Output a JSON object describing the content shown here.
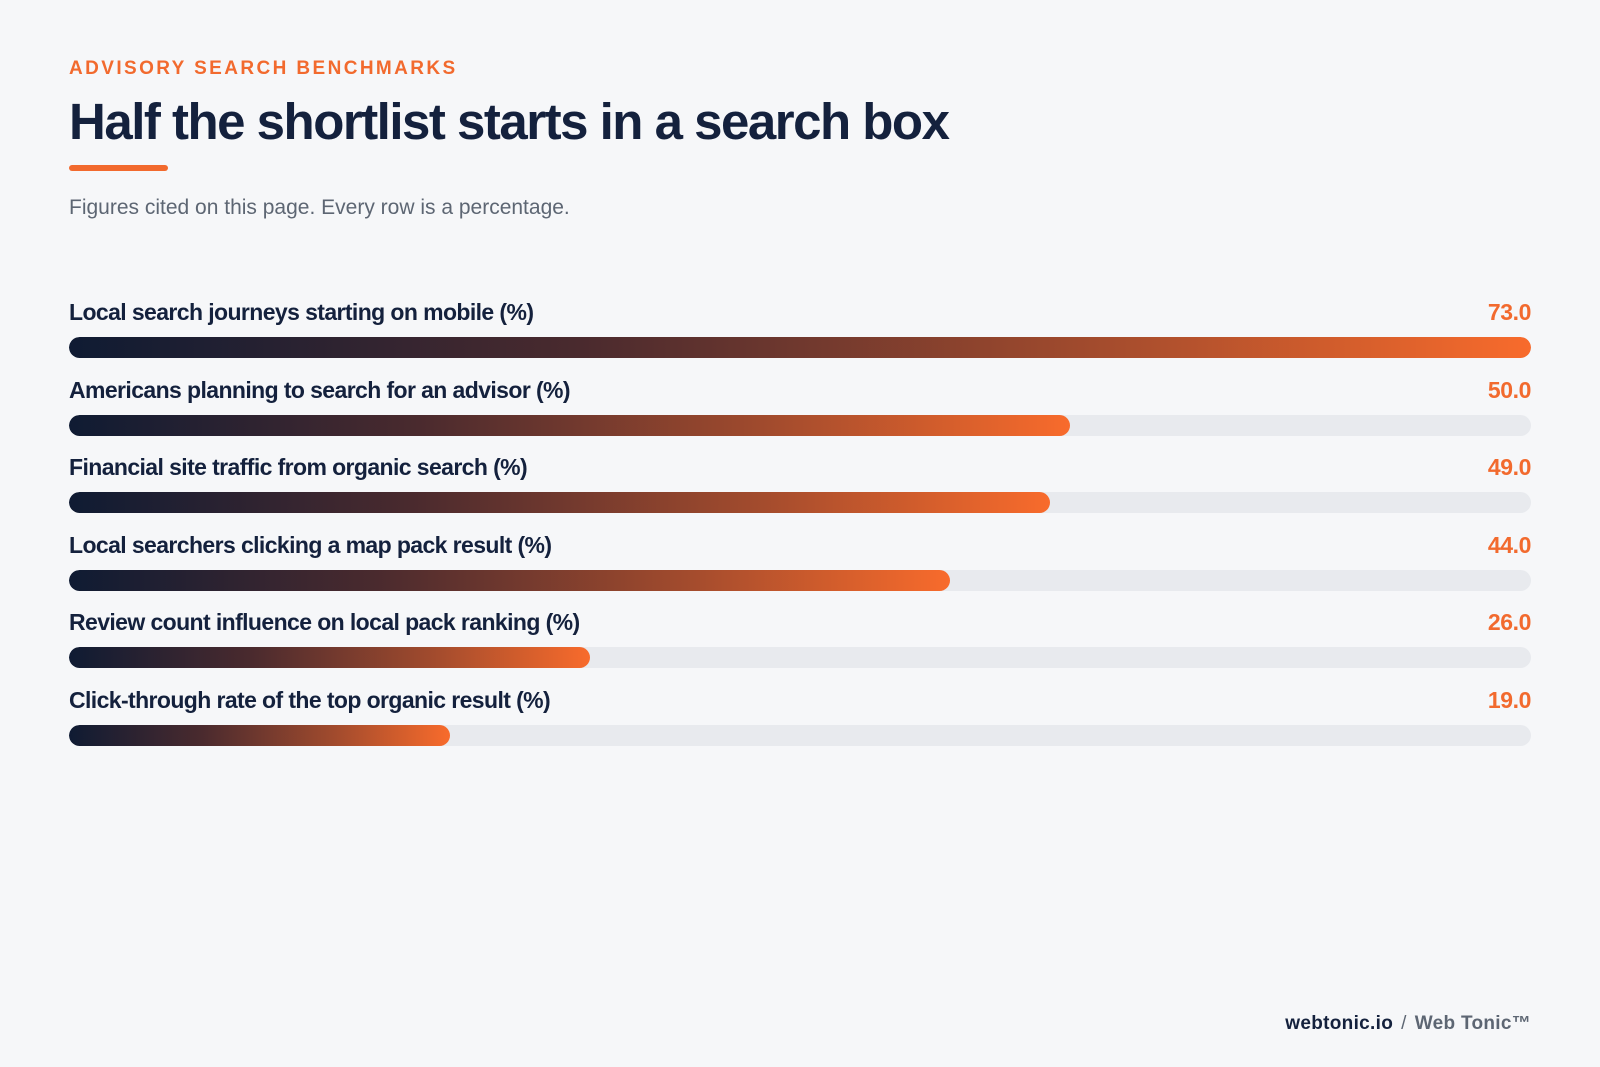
{
  "header": {
    "eyebrow": "ADVISORY SEARCH BENCHMARKS",
    "title": "Half the shortlist starts in a search box",
    "subtitle": "Figures cited on this page. Every row is a percentage."
  },
  "colors": {
    "accent": "#f26a2e",
    "ink": "#14213d",
    "muted": "#5d6673",
    "track": "#e8eaee",
    "gradient_start": "#0f1b33",
    "gradient_end": "#f86b2c",
    "background": "#f6f7f9"
  },
  "chart_data": {
    "type": "bar",
    "orientation": "horizontal",
    "xlim": [
      0,
      73
    ],
    "grid": false,
    "categories": [
      "Local search journeys starting on mobile (%)",
      "Americans planning to search for an advisor (%)",
      "Financial site traffic from organic search (%)",
      "Local searchers clicking a map pack result (%)",
      "Review count influence on local pack ranking (%)",
      "Click-through rate of the top organic result (%)"
    ],
    "values": [
      73.0,
      50.0,
      49.0,
      44.0,
      26.0,
      19.0
    ],
    "value_labels": [
      "73.0",
      "50.0",
      "49.0",
      "44.0",
      "26.0",
      "19.0"
    ]
  },
  "footer": {
    "domain": "webtonic.io",
    "separator": "/",
    "brand": "Web Tonic™"
  }
}
